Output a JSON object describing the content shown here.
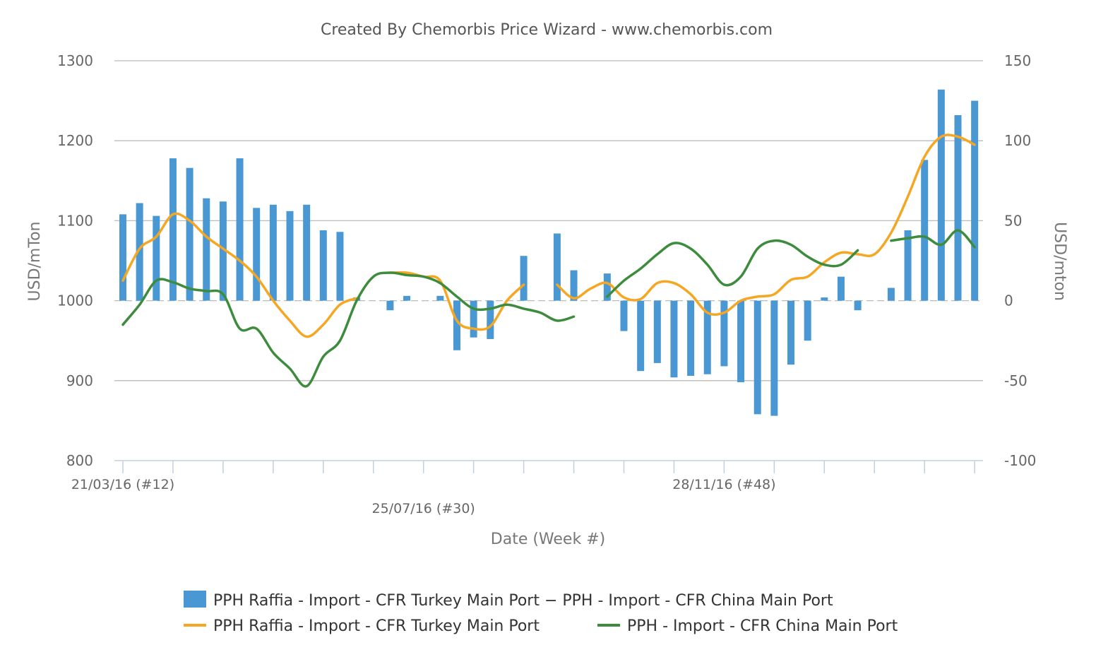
{
  "chart_data": {
    "type": "bar+line",
    "title": "Created By Chemorbis Price Wizard - www.chemorbis.com",
    "xlabel": "Date (Week #)",
    "ylabel_left": "USD/mTon",
    "ylabel_right": "USD/mton",
    "ylim_left": [
      800,
      1300
    ],
    "ylim_right": [
      -100,
      150
    ],
    "yticks_left": [
      "1300",
      "1200",
      "1100",
      "1000",
      "900",
      "800"
    ],
    "yticks_right": [
      "150",
      "100",
      "50",
      "0",
      "-50",
      "-100"
    ],
    "xticks": [
      "21/03/16 (#12)",
      "25/07/16 (#30)",
      "28/11/16 (#48)"
    ],
    "grid": true,
    "legend_position": "bottom",
    "colors": {
      "bar": "#4a98d3",
      "turkey": "#f5a623",
      "china": "#3d8c3d",
      "grid": "#bbbbbb",
      "axis": "#c0d0e0"
    },
    "bar_series": {
      "name": "PPH Raffia - Import - CFR Turkey Main Port − PPH - Import - CFR China Main Port",
      "axis": "right",
      "values": [
        54,
        61,
        53,
        89,
        83,
        64,
        62,
        89,
        58,
        60,
        56,
        60,
        44,
        43,
        2,
        null,
        -6,
        3,
        null,
        3,
        -31,
        -23,
        -24,
        null,
        28,
        null,
        42,
        19,
        null,
        17,
        -19,
        -44,
        -39,
        -48,
        -47,
        -46,
        -41,
        -51,
        -71,
        -72,
        -40,
        -25,
        2,
        15,
        -6,
        null,
        8,
        44,
        88,
        132,
        116,
        125
      ]
    },
    "line_series": [
      {
        "name": "PPH Raffia - Import - CFR Turkey Main Port",
        "axis": "left",
        "values": [
          1025,
          1065,
          1080,
          1108,
          1100,
          1080,
          1065,
          1050,
          1030,
          1000,
          975,
          955,
          970,
          995,
          1003,
          null,
          1035,
          1035,
          1030,
          1025,
          975,
          965,
          968,
          1000,
          1020,
          null,
          1020,
          1003,
          1015,
          1022,
          1004,
          1002,
          1022,
          1022,
          1008,
          985,
          985,
          1000,
          1005,
          1008,
          1026,
          1030,
          1048,
          1060,
          1058,
          1058,
          1085,
          1130,
          1180,
          1205,
          1205,
          1195
        ]
      },
      {
        "name": "PPH - Import - CFR China Main Port",
        "axis": "left",
        "values": [
          970,
          995,
          1025,
          1023,
          1015,
          1012,
          1008,
          965,
          965,
          935,
          915,
          893,
          930,
          950,
          1000,
          1030,
          1035,
          1032,
          1030,
          1022,
          1005,
          990,
          990,
          995,
          990,
          985,
          975,
          980,
          null,
          1005,
          1025,
          1040,
          1058,
          1072,
          1065,
          1045,
          1020,
          1030,
          1065,
          1075,
          1070,
          1055,
          1045,
          1045,
          1063,
          null,
          1075,
          1078,
          1080,
          1070,
          1088,
          1067
        ]
      }
    ]
  }
}
